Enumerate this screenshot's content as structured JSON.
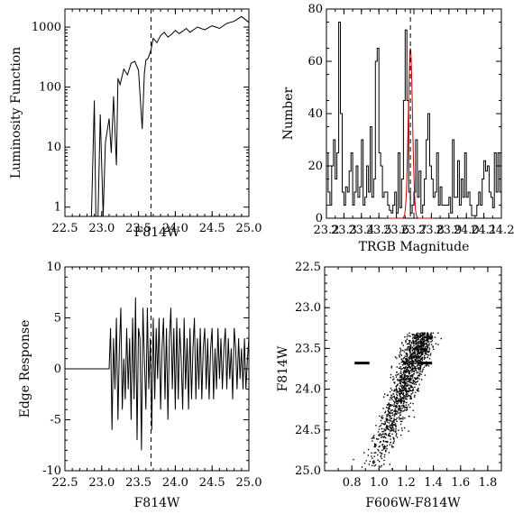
{
  "chart_data": [
    {
      "type": "line",
      "panel": "top-left",
      "xlabel": "F814W",
      "ylabel": "Luminosity Function",
      "xlim": [
        22.5,
        25.0
      ],
      "ylim": [
        0.7,
        2000
      ],
      "yscale": "log",
      "xticks": [
        "22.5",
        "23.0",
        "23.5",
        "24.0",
        "24.5",
        "25.0"
      ],
      "yticks": [
        "1",
        "10",
        "100",
        "1000"
      ],
      "trgb_marker": 23.67,
      "series": [
        {
          "x": [
            22.5,
            22.86,
            22.9,
            22.92,
            22.95,
            22.98,
            23.02,
            23.05,
            23.1,
            23.13,
            23.16,
            23.2,
            23.22,
            23.25,
            23.3,
            23.35,
            23.4,
            23.45,
            23.5,
            23.55,
            23.58,
            23.6,
            23.63,
            23.67,
            23.7,
            23.75,
            23.8,
            23.85,
            23.9,
            23.95,
            24.0,
            24.05,
            24.1,
            24.15,
            24.2,
            24.3,
            24.4,
            24.5,
            24.6,
            24.7,
            24.8,
            24.9,
            25.0
          ],
          "y": [
            0.7,
            0.7,
            60,
            0.7,
            0.7,
            35,
            0.7,
            12,
            30,
            8,
            70,
            5,
            140,
            110,
            200,
            160,
            250,
            270,
            190,
            20,
            170,
            280,
            300,
            420,
            650,
            550,
            720,
            820,
            680,
            760,
            880,
            780,
            850,
            950,
            820,
            1000,
            900,
            1050,
            950,
            1150,
            1250,
            1500,
            1200
          ]
        }
      ]
    },
    {
      "type": "histogram",
      "panel": "top-right",
      "xlabel": "TRGB Magnitude",
      "ylabel": "Number",
      "xlim": [
        23.2,
        24.2
      ],
      "ylim": [
        0,
        80
      ],
      "xticks": [
        "23.2",
        "23.3",
        "23.4",
        "23.5",
        "23.6",
        "23.7",
        "23.8",
        "23.9",
        "24.0",
        "24.1",
        "24.2"
      ],
      "yticks": [
        "0",
        "20",
        "40",
        "60",
        "80"
      ],
      "trgb_marker": 23.68,
      "bin_width": 0.01,
      "series": [
        {
          "bins": [
            23.2,
            23.21,
            23.22,
            23.23,
            23.24,
            23.25,
            23.26,
            23.27,
            23.28,
            23.29,
            23.3,
            23.31,
            23.32,
            23.33,
            23.34,
            23.35,
            23.36,
            23.37,
            23.38,
            23.39,
            23.4,
            23.41,
            23.42,
            23.43,
            23.44,
            23.45,
            23.46,
            23.47,
            23.48,
            23.49,
            23.5,
            23.51,
            23.52,
            23.53,
            23.54,
            23.55,
            23.56,
            23.57,
            23.58,
            23.59,
            23.6,
            23.61,
            23.62,
            23.63,
            23.64,
            23.65,
            23.66,
            23.67,
            23.68,
            23.69,
            23.7,
            23.71,
            23.72,
            23.73,
            23.74,
            23.75,
            23.76,
            23.77,
            23.78,
            23.79,
            23.8,
            23.81,
            23.82,
            23.83,
            23.84,
            23.85,
            23.86,
            23.87,
            23.88,
            23.89,
            23.9,
            23.91,
            23.92,
            23.93,
            23.94,
            23.95,
            23.96,
            23.97,
            23.98,
            23.99,
            24.0,
            24.01,
            24.02,
            24.03,
            24.04,
            24.05,
            24.06,
            24.07,
            24.08,
            24.09,
            24.1,
            24.11,
            24.12,
            24.13,
            24.14,
            24.15,
            24.16,
            24.17,
            24.18,
            24.19
          ],
          "counts": [
            25,
            10,
            5,
            20,
            30,
            15,
            25,
            75,
            40,
            10,
            5,
            12,
            10,
            18,
            25,
            5,
            10,
            20,
            8,
            12,
            30,
            5,
            8,
            20,
            10,
            35,
            8,
            15,
            60,
            65,
            25,
            20,
            8,
            10,
            10,
            5,
            3,
            2,
            5,
            10,
            2,
            25,
            4,
            15,
            45,
            72,
            45,
            10,
            2,
            5,
            10,
            30,
            8,
            18,
            2,
            5,
            15,
            30,
            40,
            20,
            15,
            8,
            10,
            25,
            5,
            12,
            5,
            5,
            5,
            5,
            8,
            2,
            30,
            8,
            8,
            22,
            5,
            15,
            8,
            25,
            8,
            10,
            5,
            1,
            1,
            1,
            5,
            10,
            5,
            15,
            22,
            18,
            20,
            10,
            8,
            4,
            25,
            10,
            25,
            10
          ]
        },
        {
          "curve": "gaussian",
          "color": "#cc0000",
          "mean": 23.68,
          "sigma": 0.012,
          "amplitude": 65
        }
      ]
    },
    {
      "type": "line",
      "panel": "bottom-left",
      "xlabel": "F814W",
      "ylabel": "Edge Response",
      "xlim": [
        22.5,
        25.0
      ],
      "ylim": [
        -10,
        10
      ],
      "xticks": [
        "22.5",
        "23.0",
        "23.5",
        "24.0",
        "24.5",
        "25.0"
      ],
      "yticks": [
        "10",
        "5",
        "0",
        "-5",
        "-10"
      ],
      "trgb_marker": 23.67,
      "series": [
        {
          "x": [
            22.5,
            23.1,
            23.12,
            23.14,
            23.16,
            23.18,
            23.2,
            23.22,
            23.24,
            23.26,
            23.28,
            23.3,
            23.32,
            23.34,
            23.36,
            23.38,
            23.4,
            23.42,
            23.44,
            23.46,
            23.48,
            23.5,
            23.52,
            23.54,
            23.56,
            23.58,
            23.6,
            23.62,
            23.64,
            23.66,
            23.68,
            23.7,
            23.72,
            23.74,
            23.76,
            23.78,
            23.8,
            23.82,
            23.84,
            23.86,
            23.88,
            23.9,
            23.92,
            23.94,
            23.96,
            23.98,
            24.0,
            24.02,
            24.04,
            24.06,
            24.08,
            24.1,
            24.12,
            24.14,
            24.16,
            24.18,
            24.2,
            24.22,
            24.24,
            24.26,
            24.28,
            24.3,
            24.32,
            24.34,
            24.36,
            24.38,
            24.4,
            24.42,
            24.44,
            24.46,
            24.48,
            24.5,
            24.52,
            24.54,
            24.56,
            24.58,
            24.6,
            24.62,
            24.64,
            24.66,
            24.68,
            24.7,
            24.72,
            24.74,
            24.76,
            24.78,
            24.8,
            24.82,
            24.84,
            24.86,
            24.88,
            24.9,
            24.92,
            24.94,
            24.96,
            24.98,
            25.0
          ],
          "y": [
            0,
            0,
            4,
            -6,
            3,
            -2,
            5,
            -5,
            2,
            6,
            -4,
            1,
            -3,
            4,
            -2,
            3,
            -5,
            5,
            -3,
            7,
            -7,
            4,
            3,
            -8,
            6,
            1,
            -4,
            6,
            -2,
            3,
            -6,
            5,
            -3,
            4,
            -1,
            5,
            -4,
            2,
            5,
            -3,
            4,
            -5,
            3,
            6,
            -2,
            4,
            -4,
            5,
            -3,
            4,
            1,
            -4,
            5,
            -2,
            3,
            -4,
            4,
            -3,
            2,
            5,
            -3,
            3,
            -2,
            4,
            -3,
            2,
            4,
            -2,
            3,
            -3,
            2,
            4,
            -3,
            2,
            -2,
            4,
            -1,
            3,
            -2,
            2,
            4,
            -2,
            3,
            -1,
            2,
            -3,
            4,
            2,
            -2,
            3,
            -1,
            2,
            -2,
            3,
            -2,
            1,
            3
          ]
        }
      ]
    },
    {
      "type": "scatter",
      "panel": "bottom-right",
      "xlabel": "F606W-F814W",
      "ylabel": "F814W",
      "xlim": [
        0.6,
        1.9
      ],
      "ylim": [
        25.0,
        22.5
      ],
      "yscale": "inverted",
      "xticks": [
        "0.8",
        "1.0",
        "1.2",
        "1.4",
        "1.6",
        "1.8"
      ],
      "yticks": [
        "22.5",
        "23.0",
        "23.5",
        "24.0",
        "24.5",
        "25.0"
      ],
      "trgb_segments": [
        {
          "x": [
            0.82,
            0.93
          ],
          "y": 23.68
        },
        {
          "x": [
            1.28,
            1.39
          ],
          "y": 23.68
        }
      ],
      "point_count": 1400
    }
  ]
}
